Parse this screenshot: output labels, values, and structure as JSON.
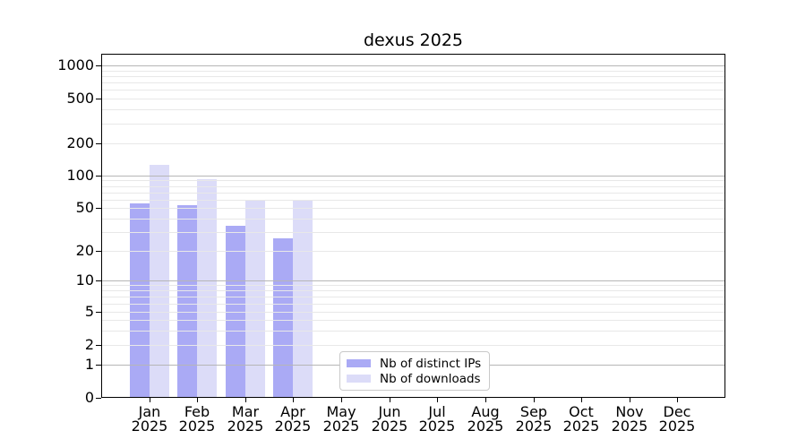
{
  "chart_data": {
    "type": "bar",
    "title": "dexus 2025",
    "categories": [
      "Jan 2025",
      "Feb 2025",
      "Mar 2025",
      "Apr 2025",
      "May 2025",
      "Jun 2025",
      "Jul 2025",
      "Aug 2025",
      "Sep 2025",
      "Oct 2025",
      "Nov 2025",
      "Dec 2025"
    ],
    "series": [
      {
        "name": "Nb of distinct IPs",
        "color": "#aaaaf5",
        "values": [
          55,
          53,
          34,
          26,
          0,
          0,
          0,
          0,
          0,
          0,
          0,
          0
        ]
      },
      {
        "name": "Nb of downloads",
        "color": "#dcdcf8",
        "values": [
          125,
          92,
          58,
          58,
          0,
          0,
          0,
          0,
          0,
          0,
          0,
          0
        ]
      }
    ],
    "xlabel": "",
    "ylabel": "",
    "yscale": "symlog",
    "yticks": [
      0,
      1,
      2,
      5,
      10,
      20,
      50,
      100,
      200,
      500,
      1000
    ],
    "ylim": [
      0,
      1280
    ],
    "grid": "horizontal",
    "grid_major_color": "#b6b6b6",
    "grid_minor_color": "#e8e8e8",
    "axis_color": "#000000",
    "legend_position": "inside-bottom-center"
  }
}
